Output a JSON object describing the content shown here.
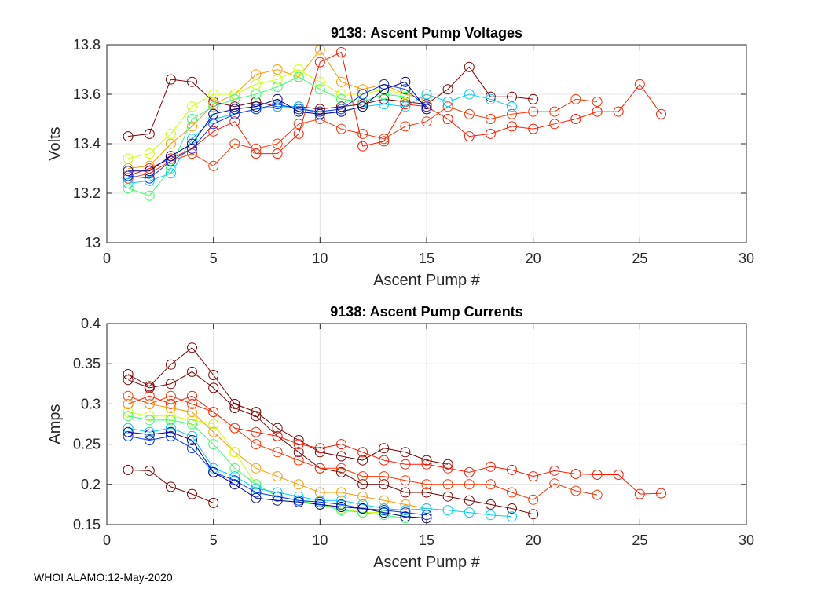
{
  "footer": "WHOI ALAMO:12-May-2020",
  "chart_data": [
    {
      "type": "line",
      "title": "9138: Ascent Pump Voltages",
      "xlabel": "Ascent Pump #",
      "ylabel": "Volts",
      "xlim": [
        0,
        30
      ],
      "ylim": [
        13,
        13.8
      ],
      "xticks": [
        0,
        5,
        10,
        15,
        20,
        25,
        30
      ],
      "yticks": [
        13,
        13.2,
        13.4,
        13.6,
        13.8
      ],
      "ytick_labels": [
        "13",
        "13.2",
        "13.4",
        "13.6",
        "13.8"
      ],
      "grid": true,
      "marker": "open-circle",
      "colormap": "jet (profile order; early profiles dark red, latest dark blue)",
      "representative_series": [
        {
          "name": "early-dark-red",
          "color": "#7f0000",
          "x": [
            1,
            2,
            3,
            4,
            5,
            6,
            7,
            8,
            9,
            10,
            11,
            12,
            13,
            14,
            15,
            16,
            17,
            18,
            19,
            20
          ],
          "y": [
            13.43,
            13.44,
            13.66,
            13.65,
            13.57,
            13.55,
            13.57,
            13.55,
            13.55,
            13.54,
            13.55,
            13.56,
            13.58,
            13.57,
            13.56,
            13.62,
            13.71,
            13.59,
            13.59,
            13.58
          ]
        },
        {
          "name": "early-red-long",
          "color": "#ff1a00",
          "x": [
            1,
            2,
            3,
            4,
            5,
            6,
            7,
            8,
            9,
            10,
            11,
            12,
            13,
            14,
            15,
            16,
            17,
            18,
            19,
            20,
            21,
            22,
            23,
            24,
            25,
            26
          ],
          "y": [
            13.27,
            13.3,
            13.34,
            13.38,
            13.45,
            13.49,
            13.36,
            13.36,
            13.44,
            13.73,
            13.77,
            13.39,
            13.41,
            13.56,
            13.55,
            13.5,
            13.43,
            13.44,
            13.47,
            13.46,
            13.48,
            13.5,
            13.53,
            13.53,
            13.64,
            13.52
          ]
        },
        {
          "name": "red-2",
          "color": "#ff3300",
          "x": [
            1,
            2,
            3,
            4,
            5,
            6,
            7,
            8,
            9,
            10,
            11,
            12,
            13,
            14,
            15,
            16,
            17,
            18,
            19,
            20,
            21,
            22,
            23
          ],
          "y": [
            13.26,
            13.28,
            13.33,
            13.36,
            13.31,
            13.4,
            13.38,
            13.4,
            13.48,
            13.5,
            13.46,
            13.44,
            13.42,
            13.47,
            13.49,
            13.55,
            13.52,
            13.5,
            13.52,
            13.53,
            13.53,
            13.58,
            13.57
          ]
        },
        {
          "name": "orange",
          "color": "#ff9900",
          "x": [
            1,
            2,
            3,
            4,
            5,
            6,
            7,
            8,
            9,
            10,
            11,
            12,
            13,
            14,
            15
          ],
          "y": [
            13.3,
            13.31,
            13.4,
            13.47,
            13.56,
            13.6,
            13.68,
            13.7,
            13.67,
            13.78,
            13.65,
            13.62,
            13.64,
            13.6,
            13.58
          ]
        },
        {
          "name": "yellow-green",
          "color": "#ccff00",
          "x": [
            1,
            2,
            3,
            4,
            5,
            6,
            7,
            8,
            9,
            10,
            11,
            12,
            13,
            14
          ],
          "y": [
            13.34,
            13.36,
            13.44,
            13.55,
            13.6,
            13.6,
            13.64,
            13.66,
            13.7,
            13.65,
            13.6,
            13.6,
            13.62,
            13.6
          ]
        },
        {
          "name": "green",
          "color": "#33ff66",
          "x": [
            1,
            2,
            3,
            4,
            5,
            6,
            7,
            8,
            9,
            10,
            11,
            12,
            13,
            14
          ],
          "y": [
            13.22,
            13.19,
            13.3,
            13.5,
            13.55,
            13.58,
            13.6,
            13.63,
            13.67,
            13.62,
            13.58,
            13.57,
            13.6,
            13.59
          ]
        },
        {
          "name": "cyan",
          "color": "#00ccff",
          "x": [
            1,
            2,
            3,
            4,
            5,
            6,
            7,
            8,
            9,
            10,
            11,
            12,
            13,
            14,
            15,
            16,
            17,
            18,
            19
          ],
          "y": [
            13.24,
            13.25,
            13.28,
            13.42,
            13.5,
            13.52,
            13.54,
            13.55,
            13.55,
            13.52,
            13.53,
            13.55,
            13.56,
            13.55,
            13.6,
            13.57,
            13.6,
            13.58,
            13.55
          ]
        },
        {
          "name": "blue",
          "color": "#0033ff",
          "x": [
            1,
            2,
            3,
            4,
            5,
            6,
            7,
            8,
            9,
            10,
            11,
            12,
            13,
            14,
            15
          ],
          "y": [
            13.27,
            13.26,
            13.33,
            13.38,
            13.48,
            13.52,
            13.54,
            13.56,
            13.54,
            13.53,
            13.54,
            13.6,
            13.64,
            13.62,
            13.55
          ]
        },
        {
          "name": "late-dark-blue",
          "color": "#00008f",
          "x": [
            1,
            2,
            3,
            4,
            5,
            6,
            7,
            8,
            9,
            10,
            11,
            12,
            13,
            14,
            15
          ],
          "y": [
            13.29,
            13.29,
            13.35,
            13.4,
            13.52,
            13.54,
            13.55,
            13.58,
            13.53,
            13.52,
            13.53,
            13.55,
            13.62,
            13.65,
            13.54
          ]
        }
      ]
    },
    {
      "type": "line",
      "title": "9138: Ascent Pump Currents",
      "xlabel": "Ascent Pump #",
      "ylabel": "Amps",
      "xlim": [
        0,
        30
      ],
      "ylim": [
        0.15,
        0.4
      ],
      "xticks": [
        0,
        5,
        10,
        15,
        20,
        25,
        30
      ],
      "yticks": [
        0.15,
        0.2,
        0.25,
        0.3,
        0.35,
        0.4
      ],
      "ytick_labels": [
        "0.15",
        "0.2",
        "0.25",
        "0.3",
        "0.35",
        "0.4"
      ],
      "grid": true,
      "marker": "open-circle",
      "colormap": "jet (profile order; early profiles dark red, latest dark blue)",
      "representative_series": [
        {
          "name": "early-dark-red-high",
          "color": "#7f0000",
          "x": [
            1,
            2,
            3,
            4,
            5,
            6,
            7,
            8,
            9,
            10,
            11,
            12,
            13,
            14,
            15,
            16
          ],
          "y": [
            0.337,
            0.322,
            0.349,
            0.37,
            0.336,
            0.3,
            0.29,
            0.27,
            0.255,
            0.24,
            0.235,
            0.23,
            0.245,
            0.24,
            0.23,
            0.225
          ]
        },
        {
          "name": "early-dark-red-low",
          "color": "#7f0000",
          "x": [
            1,
            2,
            3,
            4,
            5
          ],
          "y": [
            0.218,
            0.217,
            0.197,
            0.188,
            0.177
          ]
        },
        {
          "name": "dark-red-tail",
          "color": "#7f0000",
          "x": [
            1,
            2,
            3,
            4,
            5,
            6,
            7,
            8,
            9,
            10,
            11,
            12,
            13,
            14,
            15,
            16,
            17,
            18,
            19,
            20
          ],
          "y": [
            0.33,
            0.32,
            0.325,
            0.34,
            0.32,
            0.295,
            0.285,
            0.26,
            0.24,
            0.22,
            0.215,
            0.2,
            0.2,
            0.19,
            0.19,
            0.185,
            0.18,
            0.175,
            0.17,
            0.163
          ]
        },
        {
          "name": "red-long",
          "color": "#ff1a00",
          "x": [
            1,
            2,
            3,
            4,
            5,
            6,
            7,
            8,
            9,
            10,
            11,
            12,
            13,
            14,
            15,
            16,
            17,
            18,
            19,
            20,
            21,
            22,
            23,
            24,
            25,
            26
          ],
          "y": [
            0.3,
            0.31,
            0.3,
            0.31,
            0.29,
            0.27,
            0.265,
            0.26,
            0.25,
            0.245,
            0.25,
            0.24,
            0.23,
            0.225,
            0.225,
            0.22,
            0.215,
            0.222,
            0.218,
            0.21,
            0.217,
            0.213,
            0.212,
            0.212,
            0.188,
            0.189
          ]
        },
        {
          "name": "red-2",
          "color": "#ff3300",
          "x": [
            1,
            2,
            3,
            4,
            5,
            6,
            7,
            8,
            9,
            10,
            11,
            12,
            13,
            14,
            15,
            16,
            17,
            18,
            19,
            20,
            21,
            22,
            23
          ],
          "y": [
            0.31,
            0.3,
            0.31,
            0.3,
            0.29,
            0.27,
            0.25,
            0.24,
            0.23,
            0.22,
            0.22,
            0.21,
            0.21,
            0.205,
            0.2,
            0.2,
            0.2,
            0.2,
            0.19,
            0.181,
            0.201,
            0.192,
            0.187
          ]
        },
        {
          "name": "orange",
          "color": "#ff9900",
          "x": [
            1,
            2,
            3,
            4,
            5,
            6,
            7,
            8,
            9,
            10,
            11,
            12,
            13,
            14,
            15
          ],
          "y": [
            0.3,
            0.3,
            0.295,
            0.29,
            0.265,
            0.24,
            0.22,
            0.21,
            0.2,
            0.19,
            0.19,
            0.185,
            0.18,
            0.175,
            0.17
          ]
        },
        {
          "name": "yellow-green",
          "color": "#ccff00",
          "x": [
            1,
            2,
            3,
            4,
            5,
            6,
            7,
            8,
            9,
            10,
            11,
            12,
            13,
            14
          ],
          "y": [
            0.29,
            0.285,
            0.285,
            0.28,
            0.275,
            0.24,
            0.2,
            0.185,
            0.18,
            0.175,
            0.17,
            0.165,
            0.165,
            0.16
          ]
        },
        {
          "name": "green",
          "color": "#33ff66",
          "x": [
            1,
            2,
            3,
            4,
            5,
            6,
            7,
            8,
            9,
            10,
            11,
            12,
            13,
            14
          ],
          "y": [
            0.285,
            0.28,
            0.28,
            0.275,
            0.25,
            0.22,
            0.2,
            0.185,
            0.18,
            0.175,
            0.168,
            0.165,
            0.162,
            0.158
          ]
        },
        {
          "name": "cyan",
          "color": "#00ccff",
          "x": [
            1,
            2,
            3,
            4,
            5,
            6,
            7,
            8,
            9,
            10,
            11,
            12,
            13,
            14,
            15,
            16,
            17,
            18,
            19
          ],
          "y": [
            0.27,
            0.265,
            0.27,
            0.26,
            0.22,
            0.21,
            0.195,
            0.19,
            0.185,
            0.18,
            0.18,
            0.175,
            0.17,
            0.168,
            0.17,
            0.168,
            0.165,
            0.162,
            0.16
          ]
        },
        {
          "name": "blue",
          "color": "#0033ff",
          "x": [
            1,
            2,
            3,
            4,
            5,
            6,
            7,
            8,
            9,
            10,
            11,
            12,
            13,
            14,
            15
          ],
          "y": [
            0.26,
            0.255,
            0.26,
            0.245,
            0.215,
            0.205,
            0.19,
            0.185,
            0.18,
            0.178,
            0.175,
            0.17,
            0.168,
            0.165,
            0.162
          ]
        },
        {
          "name": "late-dark-blue",
          "color": "#00008f",
          "x": [
            1,
            2,
            3,
            4,
            5,
            6,
            7,
            8,
            9,
            10,
            11,
            12,
            13,
            14,
            15
          ],
          "y": [
            0.265,
            0.262,
            0.265,
            0.255,
            0.215,
            0.2,
            0.183,
            0.18,
            0.178,
            0.175,
            0.172,
            0.17,
            0.165,
            0.16,
            0.158
          ]
        }
      ]
    }
  ]
}
